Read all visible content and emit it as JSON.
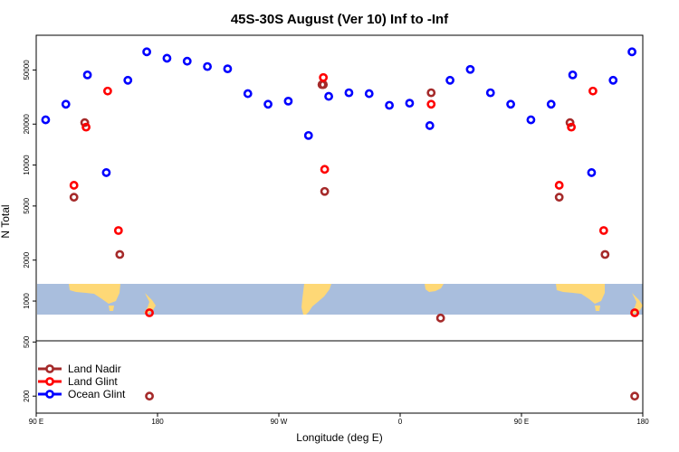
{
  "chart_data": {
    "type": "scatter",
    "title": "45S-30S August (Ver 10)   Inf to -Inf",
    "xlabel": "Longitude (deg E)",
    "ylabel": "N Total",
    "x_tick_labels": [
      "90 E",
      "180",
      "90 W",
      "0",
      "90 E",
      "180"
    ],
    "x_ticks_rotated_lon": [
      0,
      90,
      180,
      270,
      360,
      450
    ],
    "xlim_rotated_lon": [
      0,
      450
    ],
    "y_scale": "log",
    "ylim": [
      150,
      90000
    ],
    "y_ticks": [
      200,
      500,
      1000,
      2000,
      5000,
      10000,
      20000,
      50000
    ],
    "y_tick_labels": [
      "200",
      "500",
      "1000",
      "2000",
      "5000",
      "10000",
      "20000",
      "50000"
    ],
    "grid": false,
    "legend_position": "bottom-left",
    "series": [
      {
        "name": "Land Nadir",
        "color": "#a52a2a",
        "points": [
          [
            28,
            5800
          ],
          [
            36,
            20500
          ],
          [
            62,
            2200
          ],
          [
            84,
            200
          ],
          [
            212,
            39000
          ],
          [
            213,
            39000
          ],
          [
            214,
            6400
          ],
          [
            293,
            34000
          ],
          [
            300,
            750
          ],
          [
            388,
            5800
          ],
          [
            396,
            20500
          ],
          [
            422,
            2200
          ],
          [
            444,
            200
          ]
        ]
      },
      {
        "name": "Land Glint",
        "color": "#ff0000",
        "points": [
          [
            28,
            7100
          ],
          [
            37,
            19000
          ],
          [
            53,
            35000
          ],
          [
            61,
            3300
          ],
          [
            84,
            820
          ],
          [
            213,
            44000
          ],
          [
            214,
            9300
          ],
          [
            293,
            28000
          ],
          [
            388,
            7100
          ],
          [
            397,
            19000
          ],
          [
            413,
            35000
          ],
          [
            421,
            3300
          ],
          [
            444,
            820
          ]
        ]
      },
      {
        "name": "Ocean Glint",
        "color": "#0000ff",
        "points": [
          [
            7,
            21500
          ],
          [
            22,
            28000
          ],
          [
            38,
            46000
          ],
          [
            52,
            8800
          ],
          [
            68,
            42000
          ],
          [
            82,
            68000
          ],
          [
            97,
            61000
          ],
          [
            112,
            58000
          ],
          [
            127,
            53000
          ],
          [
            142,
            51000
          ],
          [
            157,
            33500
          ],
          [
            172,
            28000
          ],
          [
            187,
            29500
          ],
          [
            202,
            16500
          ],
          [
            217,
            32000
          ],
          [
            232,
            34000
          ],
          [
            247,
            33500
          ],
          [
            262,
            27500
          ],
          [
            277,
            28500
          ],
          [
            292,
            19500
          ],
          [
            307,
            42000
          ],
          [
            322,
            50500
          ],
          [
            337,
            34000
          ],
          [
            352,
            28000
          ],
          [
            367,
            21500
          ],
          [
            382,
            28000
          ],
          [
            398,
            46000
          ],
          [
            412,
            8800
          ],
          [
            428,
            42000
          ],
          [
            442,
            68000
          ]
        ]
      }
    ],
    "background_map": "world coastline strip (land in tan, ocean in light blue) spanning approx. 45S to 30S"
  }
}
